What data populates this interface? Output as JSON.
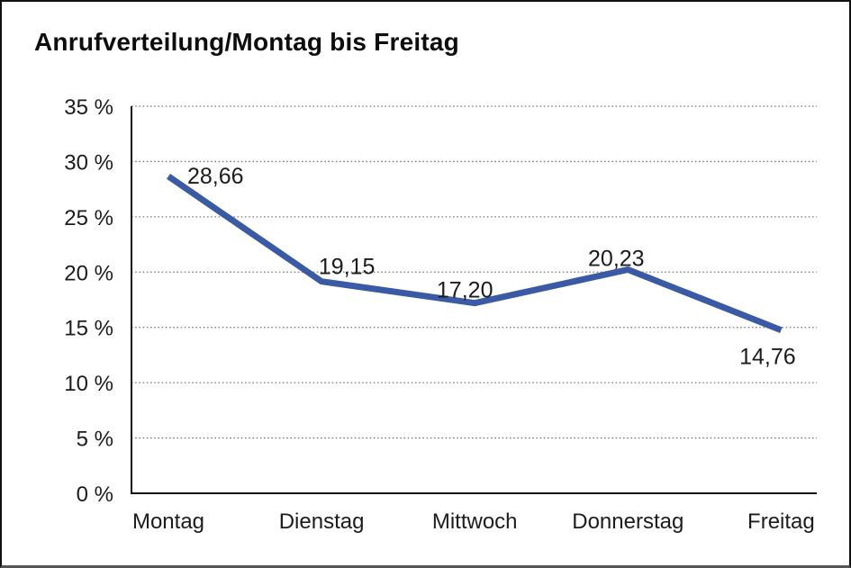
{
  "window": {
    "title": "Anrufverteilung/Montag bis Freitag"
  },
  "chart_data": {
    "type": "line",
    "title": "Anrufverteilung/Montag bis Freitag",
    "categories": [
      "Montag",
      "Dienstag",
      "Mittwoch",
      "Donnerstag",
      "Freitag"
    ],
    "series": [
      {
        "name": "Anrufverteilung",
        "values": [
          28.66,
          19.15,
          17.2,
          20.23,
          14.76
        ],
        "point_labels": [
          "28,66",
          "19,15",
          "17,20",
          "20,23",
          "14,76"
        ]
      }
    ],
    "xlabel": "",
    "ylabel": "",
    "ylim": [
      0,
      35
    ],
    "y_ticks": [
      {
        "value": 0,
        "label": "0 %"
      },
      {
        "value": 5,
        "label": "5 %"
      },
      {
        "value": 10,
        "label": "10 %"
      },
      {
        "value": 15,
        "label": "15 %"
      },
      {
        "value": 20,
        "label": "20 %"
      },
      {
        "value": 25,
        "label": "25 %"
      },
      {
        "value": 30,
        "label": "30 %"
      },
      {
        "value": 35,
        "label": "35 %"
      }
    ],
    "grid": "horizontal-dotted",
    "legend_position": "none",
    "decimal_separator": ",",
    "colors": {
      "line": "#3B5AA5",
      "grid": "#7a7a7a",
      "axis": "#111111",
      "text": "#1c1c1c",
      "background": "#ffffff"
    }
  }
}
